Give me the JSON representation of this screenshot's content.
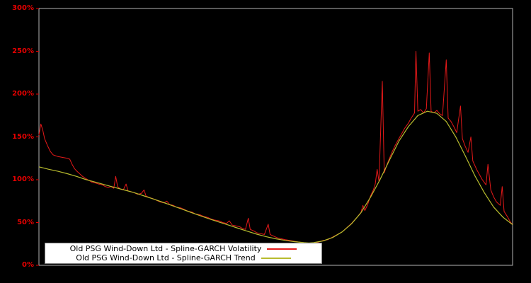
{
  "chart_data": {
    "type": "line",
    "title": "",
    "xlabel": "",
    "ylabel": "",
    "ylim": [
      0,
      300
    ],
    "grid": false,
    "background_color": "#000000",
    "axis_label_color": "#e60000",
    "plot_border_color": "#b4b4b4",
    "legend_position": "bottom-left-inside",
    "yticks": [
      {
        "label": "0%",
        "value": 0
      },
      {
        "label": "50%",
        "value": 50
      },
      {
        "label": "100%",
        "value": 100
      },
      {
        "label": "150%",
        "value": 150
      },
      {
        "label": "200%",
        "value": 200
      },
      {
        "label": "250%",
        "value": 250
      },
      {
        "label": "300%",
        "value": 300
      }
    ],
    "series": [
      {
        "name": "Old PSG Wind-Down Ltd - Spline-GARCH Volatility",
        "key": "volatility",
        "color": "#e51919",
        "stroke_width": 1,
        "points": [
          [
            0,
            152
          ],
          [
            0.4,
            165
          ],
          [
            0.8,
            158
          ],
          [
            1.2,
            148
          ],
          [
            1.8,
            140
          ],
          [
            2.4,
            133
          ],
          [
            3,
            129
          ],
          [
            4,
            127
          ],
          [
            5,
            126
          ],
          [
            6,
            125
          ],
          [
            6.5,
            124
          ],
          [
            7,
            118
          ],
          [
            7.5,
            113
          ],
          [
            8,
            110
          ],
          [
            8.6,
            107
          ],
          [
            9.2,
            104
          ],
          [
            10,
            101
          ],
          [
            10.6,
            99
          ],
          [
            11.2,
            97
          ],
          [
            12,
            96
          ],
          [
            12.6,
            95
          ],
          [
            13.4,
            94
          ],
          [
            14,
            92
          ],
          [
            14.6,
            91
          ],
          [
            15.2,
            92
          ],
          [
            15.8,
            90
          ],
          [
            16.2,
            104
          ],
          [
            16.6,
            92
          ],
          [
            17.2,
            89
          ],
          [
            17.8,
            88
          ],
          [
            18.4,
            95
          ],
          [
            18.8,
            87
          ],
          [
            19.4,
            86
          ],
          [
            20,
            85
          ],
          [
            20.8,
            83
          ],
          [
            21.6,
            84
          ],
          [
            22.2,
            88
          ],
          [
            22.6,
            81
          ],
          [
            23.4,
            79
          ],
          [
            24,
            78
          ],
          [
            24.8,
            76
          ],
          [
            25.6,
            74
          ],
          [
            26.4,
            73
          ],
          [
            27,
            75
          ],
          [
            27.6,
            71
          ],
          [
            28.4,
            70
          ],
          [
            29,
            68
          ],
          [
            30,
            67
          ],
          [
            30.8,
            65
          ],
          [
            31.6,
            63
          ],
          [
            32.4,
            62
          ],
          [
            33,
            60
          ],
          [
            34,
            59
          ],
          [
            34.8,
            57
          ],
          [
            35.6,
            56
          ],
          [
            36.4,
            54
          ],
          [
            37,
            53
          ],
          [
            38,
            52
          ],
          [
            38.8,
            50
          ],
          [
            39.6,
            49
          ],
          [
            40.2,
            52
          ],
          [
            40.8,
            47
          ],
          [
            41.6,
            46
          ],
          [
            42.4,
            45
          ],
          [
            43,
            43
          ],
          [
            43.6,
            42
          ],
          [
            44.2,
            55
          ],
          [
            44.6,
            42
          ],
          [
            45.4,
            40
          ],
          [
            46,
            38
          ],
          [
            46.8,
            37
          ],
          [
            47.6,
            36
          ],
          [
            48.4,
            48
          ],
          [
            48.8,
            36
          ],
          [
            49.6,
            34
          ],
          [
            50.4,
            32
          ],
          [
            51.2,
            31
          ],
          [
            52,
            30
          ],
          [
            53,
            29
          ],
          [
            54,
            28
          ],
          [
            55,
            27
          ],
          [
            56,
            26
          ],
          [
            57,
            25.5
          ],
          [
            58,
            26
          ],
          [
            59,
            27
          ],
          [
            60,
            29
          ],
          [
            61,
            30
          ],
          [
            62,
            33
          ],
          [
            63,
            36
          ],
          [
            64,
            39
          ],
          [
            65,
            44
          ],
          [
            66,
            49
          ],
          [
            67,
            55
          ],
          [
            68,
            62
          ],
          [
            68.4,
            70
          ],
          [
            68.8,
            64
          ],
          [
            69.4,
            71
          ],
          [
            70,
            81
          ],
          [
            70.6,
            88
          ],
          [
            71,
            95
          ],
          [
            71.4,
            112
          ],
          [
            71.8,
            98
          ],
          [
            72.5,
            215
          ],
          [
            72.9,
            108
          ],
          [
            73.5,
            118
          ],
          [
            74,
            125
          ],
          [
            74.6,
            133
          ],
          [
            75.2,
            140
          ],
          [
            76,
            148
          ],
          [
            76.6,
            154
          ],
          [
            77.2,
            160
          ],
          [
            78,
            166
          ],
          [
            78.6,
            172
          ],
          [
            79.3,
            178
          ],
          [
            79.6,
            250
          ],
          [
            80,
            180
          ],
          [
            80.6,
            182
          ],
          [
            81.2,
            178
          ],
          [
            81.8,
            183
          ],
          [
            82.4,
            248
          ],
          [
            82.8,
            180
          ],
          [
            83.4,
            178
          ],
          [
            84,
            181
          ],
          [
            84.6,
            177
          ],
          [
            85.2,
            175
          ],
          [
            86,
            240
          ],
          [
            86.4,
            172
          ],
          [
            87,
            168
          ],
          [
            87.6,
            162
          ],
          [
            88.2,
            155
          ],
          [
            89,
            186
          ],
          [
            89.4,
            148
          ],
          [
            90,
            139
          ],
          [
            90.6,
            132
          ],
          [
            91.2,
            150
          ],
          [
            91.6,
            122
          ],
          [
            92.4,
            112
          ],
          [
            93,
            106
          ],
          [
            93.6,
            100
          ],
          [
            94.4,
            94
          ],
          [
            94.8,
            118
          ],
          [
            95.4,
            88
          ],
          [
            96,
            80
          ],
          [
            96.6,
            74
          ],
          [
            97.4,
            70
          ],
          [
            97.8,
            92
          ],
          [
            98.2,
            63
          ],
          [
            99,
            56
          ],
          [
            99.6,
            50
          ],
          [
            100,
            48
          ]
        ]
      },
      {
        "name": "Old PSG Wind-Down Ltd - Spline-GARCH Trend",
        "key": "trend",
        "color": "#b8bc2e",
        "stroke_width": 1.2,
        "points": [
          [
            0,
            115
          ],
          [
            2,
            112.2
          ],
          [
            4,
            109.8
          ],
          [
            6,
            107
          ],
          [
            8,
            103.8
          ],
          [
            10,
            100
          ],
          [
            12,
            97
          ],
          [
            14,
            94
          ],
          [
            16,
            91
          ],
          [
            18,
            88
          ],
          [
            20,
            85
          ],
          [
            22,
            81.4
          ],
          [
            24,
            77.8
          ],
          [
            26,
            74
          ],
          [
            28,
            70
          ],
          [
            30,
            66
          ],
          [
            32,
            62
          ],
          [
            34,
            58
          ],
          [
            36,
            54.2
          ],
          [
            38,
            50.6
          ],
          [
            40,
            47
          ],
          [
            42,
            43.4
          ],
          [
            44,
            39.8
          ],
          [
            46,
            36.4
          ],
          [
            48,
            33.4
          ],
          [
            50,
            31
          ],
          [
            52,
            29.1
          ],
          [
            54,
            27.6
          ],
          [
            56,
            26.5
          ],
          [
            57,
            26.2
          ],
          [
            58,
            26.5
          ],
          [
            60,
            28.5
          ],
          [
            62,
            32.5
          ],
          [
            64,
            39
          ],
          [
            66,
            48.5
          ],
          [
            68,
            61.5
          ],
          [
            70,
            79.5
          ],
          [
            72,
            100
          ],
          [
            74,
            123
          ],
          [
            76,
            145
          ],
          [
            78,
            162
          ],
          [
            80,
            175
          ],
          [
            82,
            180
          ],
          [
            84,
            177.5
          ],
          [
            86,
            168
          ],
          [
            88,
            150
          ],
          [
            90,
            128
          ],
          [
            92,
            105
          ],
          [
            94,
            85
          ],
          [
            96,
            68
          ],
          [
            98,
            56
          ],
          [
            100,
            47.5
          ]
        ]
      }
    ]
  },
  "legend": {
    "items": [
      {
        "label": "Old PSG Wind-Down Ltd - Spline-GARCH Volatility"
      },
      {
        "label": "Old PSG Wind-Down Ltd - Spline-GARCH Trend"
      }
    ]
  }
}
